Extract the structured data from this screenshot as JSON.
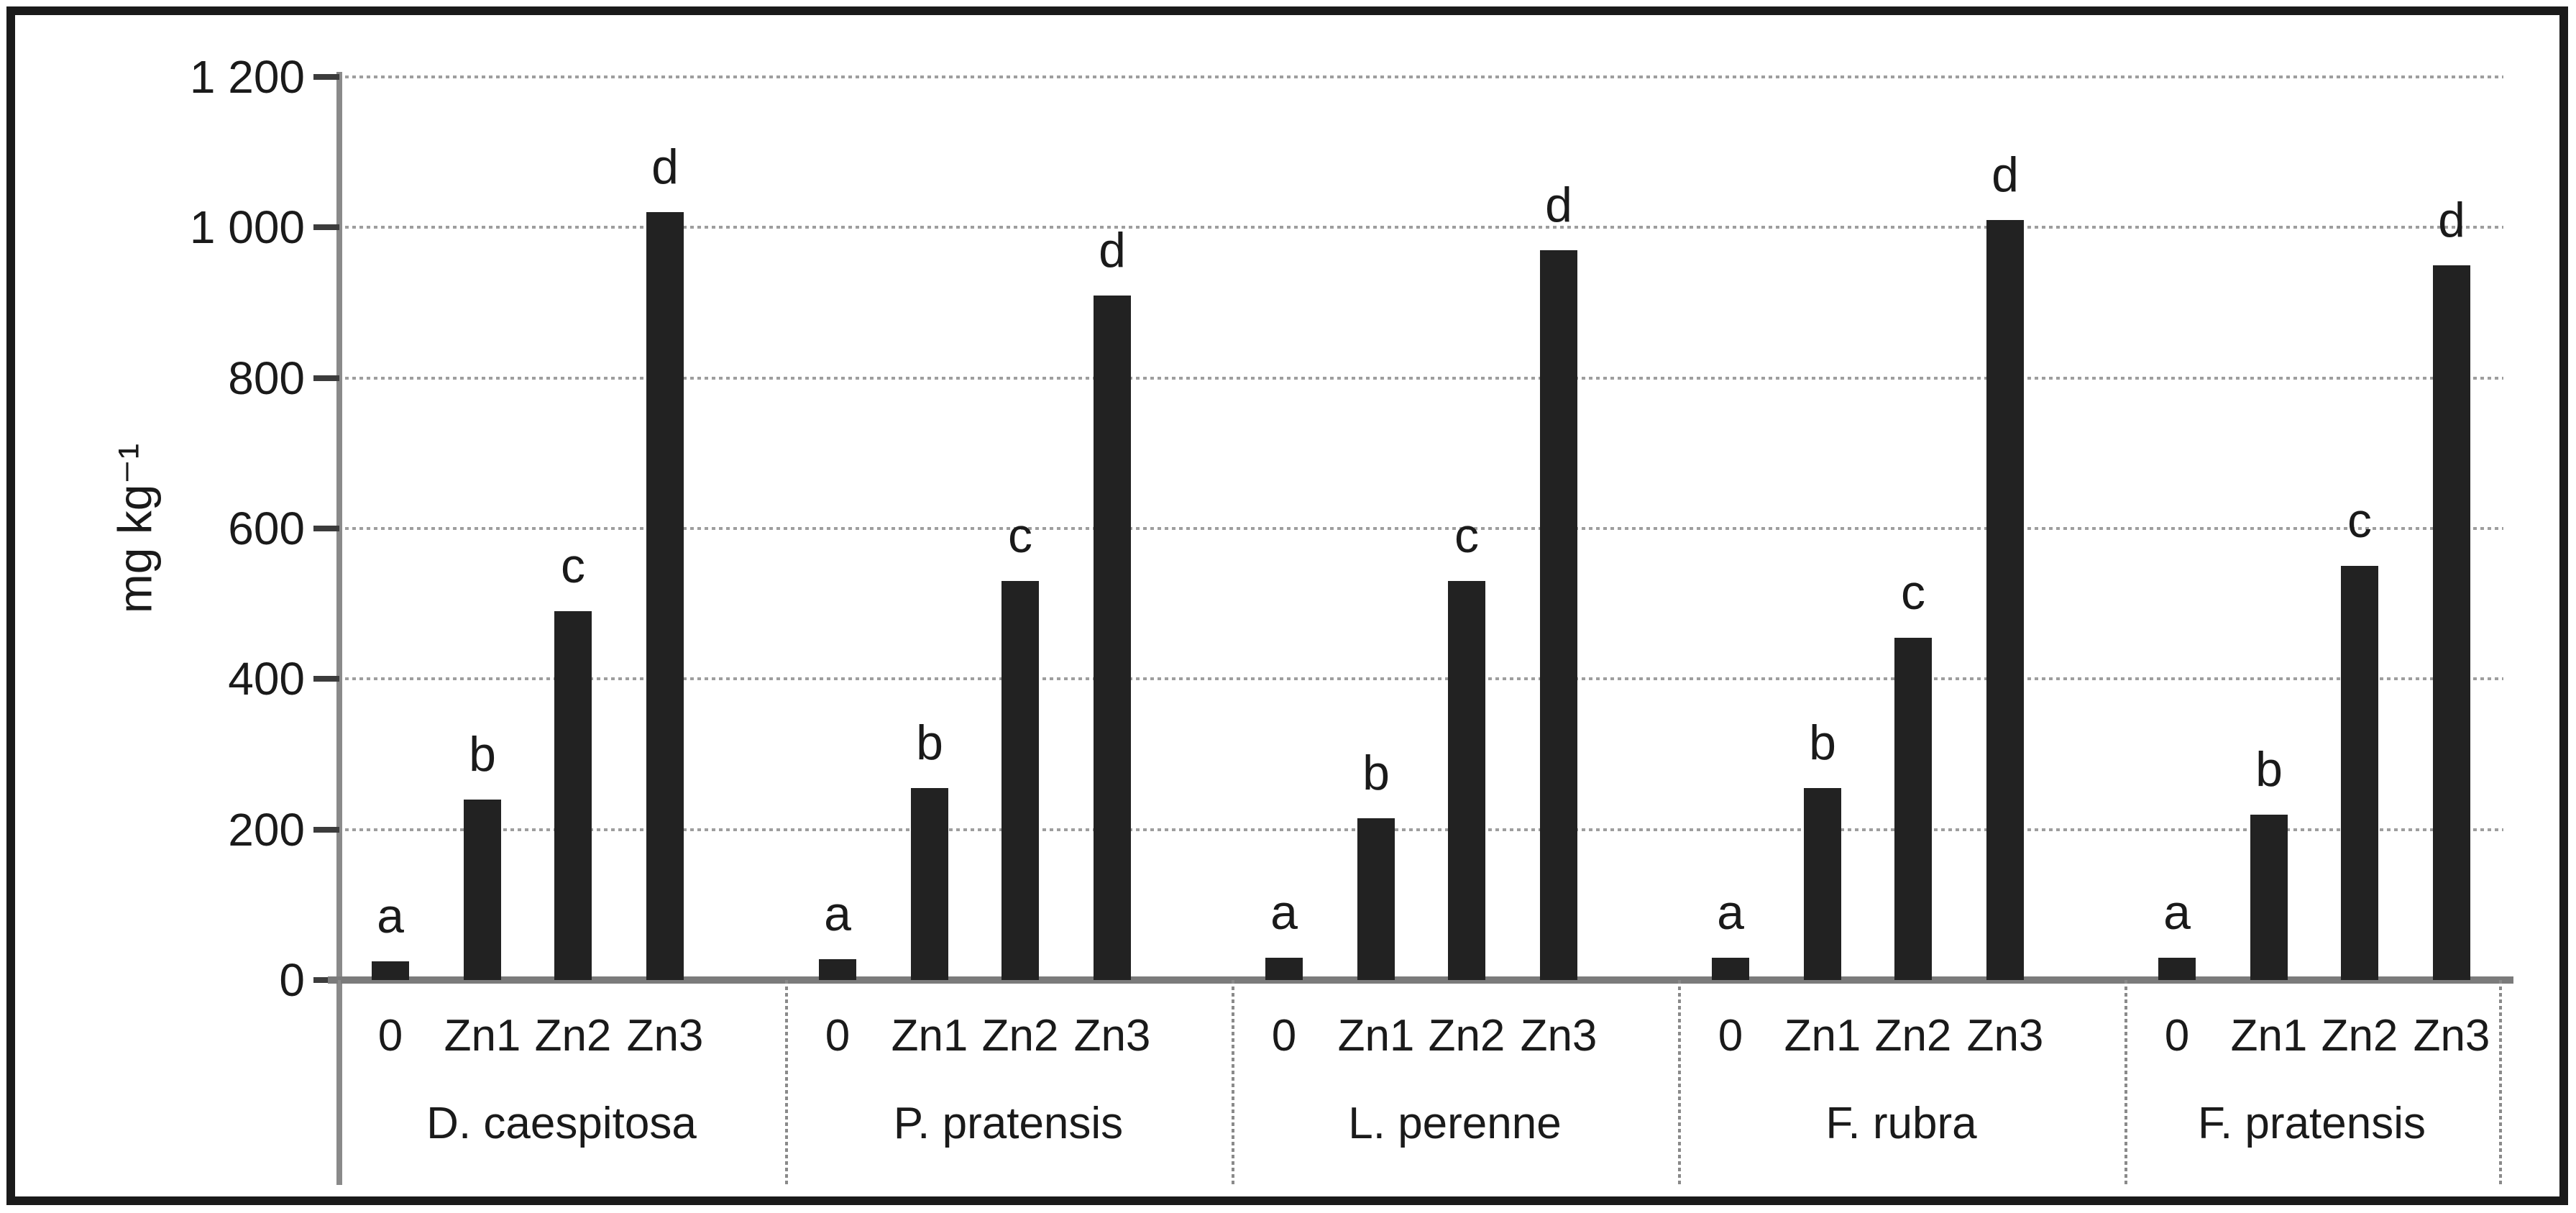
{
  "chart_data": {
    "type": "bar",
    "title": "",
    "xlabel": "",
    "ylabel": "mg kg⁻¹",
    "ylim": [
      0,
      1200
    ],
    "ytick_step": 200,
    "ytick_labels": [
      "1 200",
      "1 000",
      "800",
      "600",
      "400",
      "200",
      "0"
    ],
    "grid": "horizontal-dotted",
    "legend": "none",
    "treatments": [
      "0",
      "Zn1",
      "Zn2",
      "Zn3"
    ],
    "categories": [
      "D. caespitosa",
      "P. pratensis",
      "L. perenne",
      "F. rubra",
      "F. pratensis"
    ],
    "series": [
      {
        "name": "D. caespitosa",
        "values": [
          25,
          240,
          490,
          1020
        ],
        "letters": [
          "a",
          "b",
          "c",
          "d"
        ]
      },
      {
        "name": "P. pratensis",
        "values": [
          28,
          255,
          530,
          910
        ],
        "letters": [
          "a",
          "b",
          "c",
          "d"
        ]
      },
      {
        "name": "L. perenne",
        "values": [
          30,
          215,
          530,
          970
        ],
        "letters": [
          "a",
          "b",
          "c",
          "d"
        ]
      },
      {
        "name": "F. rubra",
        "values": [
          30,
          255,
          455,
          1010
        ],
        "letters": [
          "a",
          "b",
          "c",
          "d"
        ]
      },
      {
        "name": "F. pratensis",
        "values": [
          30,
          220,
          550,
          950
        ],
        "letters": [
          "a",
          "b",
          "c",
          "d"
        ]
      }
    ]
  },
  "style": {
    "background": "#ffffff",
    "frame_color": "#1a1a1a",
    "bar_color": "#222222",
    "text_color": "#1a1a1a",
    "gridline_color": "#9e9e9e",
    "axis_color": "#8a8a8a",
    "baseline_color": "#7b7b7b",
    "tick_color": "#3c3c3c"
  }
}
